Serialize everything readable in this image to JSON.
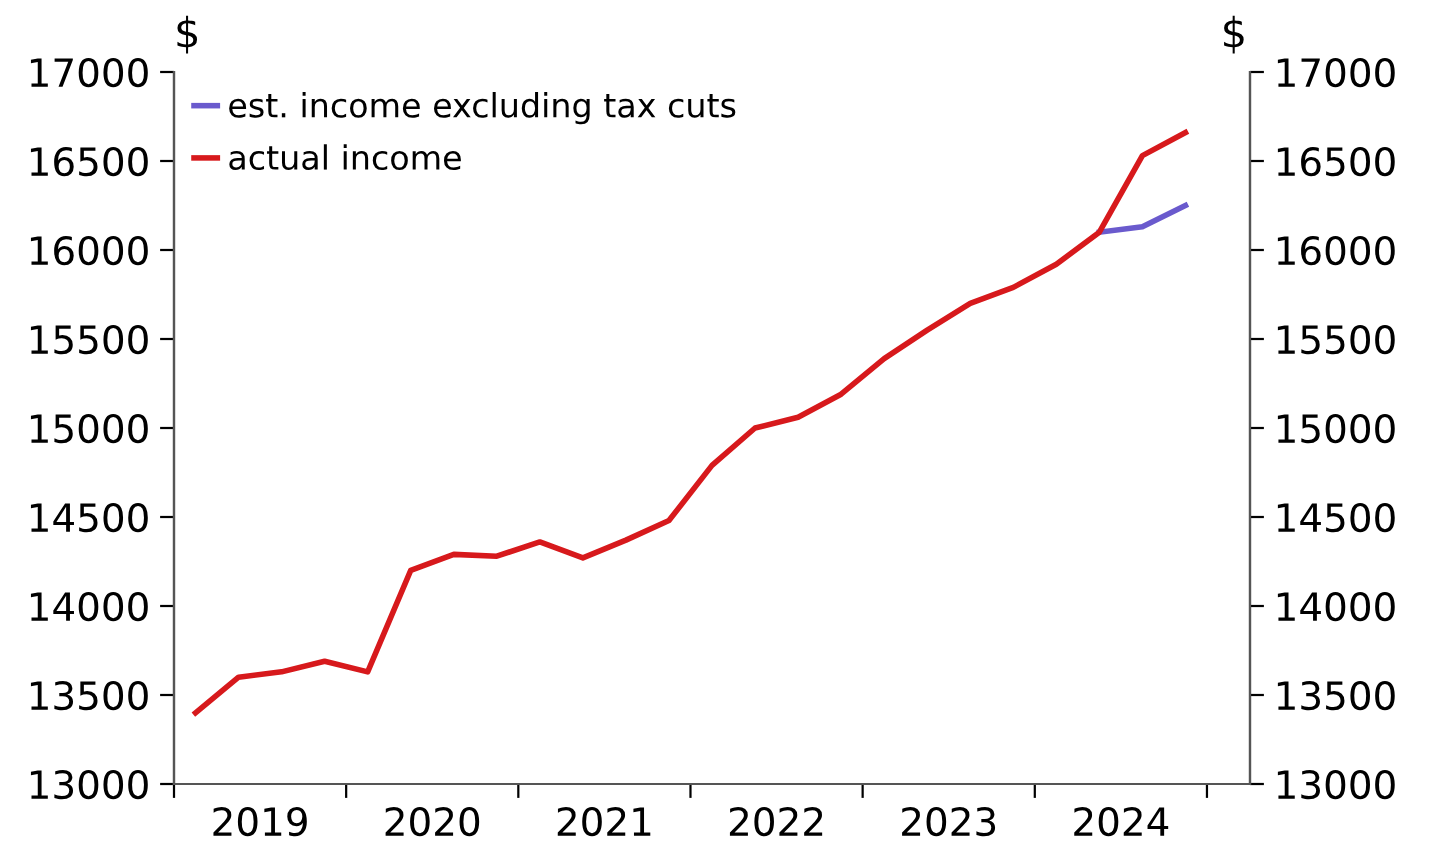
{
  "chart_data": {
    "type": "line",
    "ylabel": "$",
    "y2label": "$",
    "x": [
      2019.125,
      2019.375,
      2019.625,
      2019.875,
      2020.125,
      2020.375,
      2020.625,
      2020.875,
      2021.125,
      2021.375,
      2021.625,
      2021.875,
      2022.125,
      2022.375,
      2022.625,
      2022.875,
      2023.125,
      2023.375,
      2023.625,
      2023.875,
      2024.125,
      2024.375,
      2024.625,
      2024.875
    ],
    "series": [
      {
        "name": "est. income excluding tax cuts",
        "color": "#6a5acd",
        "values": [
          null,
          null,
          null,
          null,
          null,
          null,
          null,
          null,
          null,
          null,
          null,
          null,
          null,
          null,
          null,
          null,
          null,
          null,
          null,
          null,
          null,
          16100,
          16130,
          16250
        ]
      },
      {
        "name": "actual income",
        "color": "#d7191c",
        "values": [
          13400,
          13600,
          13630,
          13690,
          13630,
          14200,
          14290,
          14280,
          14360,
          14270,
          14370,
          14480,
          14790,
          15000,
          15060,
          15190,
          15390,
          15550,
          15700,
          15790,
          15920,
          16100,
          16530,
          16660
        ]
      }
    ],
    "xlim": [
      2019,
      2025.25
    ],
    "xticks": [
      {
        "value": 2019,
        "label": null
      },
      {
        "value": 2019.5,
        "label": "2019"
      },
      {
        "value": 2020,
        "label": null
      },
      {
        "value": 2020.5,
        "label": "2020"
      },
      {
        "value": 2021,
        "label": null
      },
      {
        "value": 2021.5,
        "label": "2021"
      },
      {
        "value": 2022,
        "label": null
      },
      {
        "value": 2022.5,
        "label": "2022"
      },
      {
        "value": 2023,
        "label": null
      },
      {
        "value": 2023.5,
        "label": "2023"
      },
      {
        "value": 2024,
        "label": null
      },
      {
        "value": 2024.5,
        "label": "2024"
      },
      {
        "value": 2025,
        "label": null
      }
    ],
    "ylim": [
      13000,
      17000
    ],
    "yticks": [
      13000,
      13500,
      14000,
      14500,
      15000,
      15500,
      16000,
      16500,
      17000
    ],
    "y2lim": [
      13000,
      17000
    ],
    "y2ticks": [
      13000,
      13500,
      14000,
      14500,
      15000,
      15500,
      16000,
      16500,
      17000
    ],
    "legend": "top left",
    "grid": false,
    "line_style": "solid",
    "marker": "none"
  }
}
